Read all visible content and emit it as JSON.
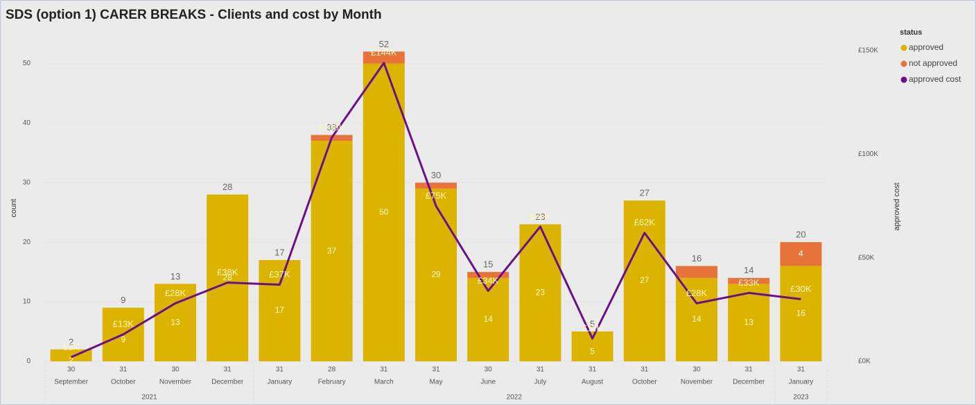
{
  "chart_data": {
    "type": "bar",
    "title": "SDS (option 1) CARER BREAKS - Clients and cost by Month",
    "categories": [
      "September",
      "October",
      "November",
      "December",
      "January",
      "February",
      "March",
      "May",
      "June",
      "July",
      "August",
      "October",
      "November",
      "December",
      "January"
    ],
    "days": [
      "30",
      "31",
      "30",
      "31",
      "31",
      "28",
      "31",
      "31",
      "30",
      "31",
      "31",
      "31",
      "30",
      "31",
      "31"
    ],
    "years": [
      "2021",
      "2021",
      "2021",
      "2021",
      "2022",
      "2022",
      "2022",
      "2022",
      "2022",
      "2022",
      "2022",
      "2022",
      "2022",
      "2022",
      "2023"
    ],
    "series": [
      {
        "name": "approved",
        "color": "#dcb400",
        "values": [
          2,
          9,
          13,
          28,
          17,
          37,
          50,
          29,
          14,
          23,
          5,
          27,
          14,
          13,
          16
        ]
      },
      {
        "name": "not approved",
        "color": "#e8733a",
        "values": [
          0,
          0,
          0,
          0,
          0,
          1,
          2,
          1,
          1,
          0,
          0,
          0,
          2,
          1,
          4
        ]
      },
      {
        "name": "approved cost",
        "color": "#6a0f8a",
        "type": "line",
        "axis": "y2",
        "values": [
          2,
          13,
          28,
          38,
          37,
          108,
          144,
          75,
          34,
          65,
          11,
          62,
          28,
          33,
          30
        ],
        "value_labels": [
          "£2K",
          "£13K",
          "£28K",
          "£38K",
          "£37K",
          "£108K",
          "£144K",
          "£75K",
          "£34K",
          "£65K",
          "£11K",
          "£62K",
          "£28K",
          "£33K",
          "£30K"
        ]
      }
    ],
    "totals": [
      2,
      9,
      13,
      28,
      17,
      38,
      52,
      30,
      15,
      23,
      5,
      27,
      16,
      14,
      20
    ],
    "ylim": [
      0,
      56
    ],
    "yticks": [
      0,
      10,
      20,
      30,
      40,
      50
    ],
    "y2lim": [
      0,
      161
    ],
    "y2ticks": [
      {
        "value": 0,
        "label": "£0K"
      },
      {
        "value": 50,
        "label": "£50K"
      },
      {
        "value": 100,
        "label": "£100K"
      },
      {
        "value": 150,
        "label": "£150K"
      }
    ],
    "y_label": "count",
    "y2_label": "approved cost",
    "legend_title": "status",
    "legend": "top-right",
    "grid": true
  }
}
